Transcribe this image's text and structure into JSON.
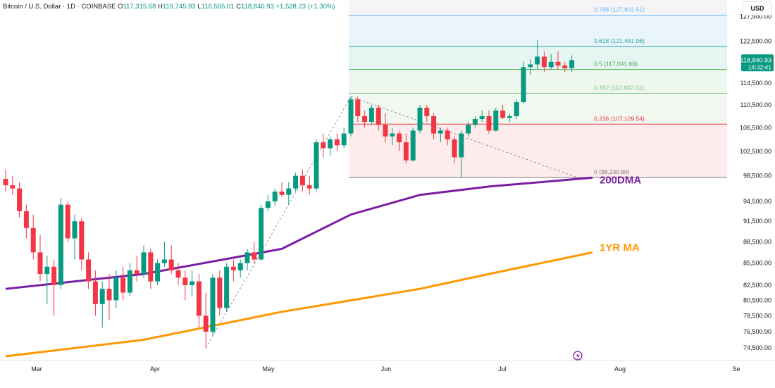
{
  "header": {
    "symbol": "Bitcoin / U.S. Dollar · 1D · COINBASE",
    "o_label": "O",
    "o_value": "117,315.68",
    "h_label": "H",
    "h_value": "119,745.93",
    "l_label": "L",
    "l_value": "116,565.01",
    "c_label": "C",
    "c_value": "118,840.93",
    "change": "+1,528.23 (+1.30%)"
  },
  "currency_button": "USD",
  "price_tag": {
    "price": "118,840.93",
    "countdown": "14:32:41"
  },
  "colors": {
    "up": "#089981",
    "down": "#f23645",
    "ma200": "#7b1fa2",
    "ma1yr": "#ff9800",
    "fib_786": "#64b5f6",
    "fib_618": "#26a69a",
    "fib_5": "#4caf50",
    "fib_382": "#81c784",
    "fib_236": "#f23645",
    "fib_0": "#787b86"
  },
  "chart_data": {
    "type": "candlestick",
    "x_axis": {
      "ticks": [
        "Mar",
        "Apr",
        "May",
        "Jun",
        "Jul",
        "Aug",
        "Se"
      ]
    },
    "y_axis": {
      "ticks": [
        "127,500.00",
        "122,500.00",
        "118,500.00",
        "114,500.00",
        "110,500.00",
        "106,500.00",
        "102,500.00",
        "98,500.00",
        "94,500.00",
        "91,500.00",
        "88,500.00",
        "85,500.00",
        "82,500.00",
        "80,500.00",
        "78,500.00",
        "76,500.00",
        "74,500.00"
      ],
      "scale": "log",
      "range": [
        73000,
        131000
      ]
    },
    "candles_ohlc_approx": [
      [
        98000,
        99500,
        96000,
        97000
      ],
      [
        97000,
        98500,
        95500,
        96500
      ],
      [
        96500,
        97500,
        92000,
        93000
      ],
      [
        93000,
        94000,
        89000,
        90500
      ],
      [
        90500,
        92500,
        86000,
        87000
      ],
      [
        87000,
        89500,
        83000,
        84000
      ],
      [
        84000,
        86500,
        80000,
        85000
      ],
      [
        85000,
        86000,
        78500,
        82500
      ],
      [
        82500,
        95000,
        82000,
        94000
      ],
      [
        94000,
        94500,
        88500,
        89000
      ],
      [
        89000,
        92500,
        86000,
        91500
      ],
      [
        91500,
        92000,
        84500,
        86000
      ],
      [
        86000,
        87000,
        82000,
        83000
      ],
      [
        83000,
        84500,
        78500,
        80000
      ],
      [
        80000,
        83000,
        77000,
        82000
      ],
      [
        82000,
        84000,
        78000,
        80500
      ],
      [
        80500,
        84500,
        79500,
        83500
      ],
      [
        83500,
        85000,
        80500,
        81500
      ],
      [
        81500,
        85500,
        81000,
        84500
      ],
      [
        84500,
        86500,
        83000,
        84000
      ],
      [
        84000,
        88000,
        83500,
        87000
      ],
      [
        87000,
        87500,
        82000,
        83000
      ],
      [
        83000,
        86000,
        82500,
        85500
      ],
      [
        85500,
        88500,
        85000,
        86000
      ],
      [
        86000,
        88000,
        84000,
        84500
      ],
      [
        84500,
        85500,
        82500,
        83500
      ],
      [
        83500,
        84500,
        80500,
        82500
      ],
      [
        82500,
        84500,
        81000,
        83000
      ],
      [
        83000,
        84000,
        77000,
        78500
      ],
      [
        78500,
        81500,
        74500,
        76500
      ],
      [
        76500,
        84000,
        76000,
        83500
      ],
      [
        83500,
        84500,
        78500,
        79500
      ],
      [
        79500,
        85500,
        79000,
        85000
      ],
      [
        85000,
        86000,
        83000,
        84500
      ],
      [
        84500,
        86000,
        83500,
        85500
      ],
      [
        85500,
        87500,
        84500,
        87000
      ],
      [
        87000,
        88500,
        85500,
        86000
      ],
      [
        86000,
        94000,
        85800,
        93500
      ],
      [
        93500,
        95500,
        93000,
        94500
      ],
      [
        94500,
        96500,
        93800,
        96000
      ],
      [
        96000,
        97500,
        95200,
        95500
      ],
      [
        95500,
        97500,
        94000,
        96500
      ],
      [
        96500,
        99000,
        96000,
        98500
      ],
      [
        98500,
        99500,
        96000,
        97000
      ],
      [
        97000,
        98500,
        95500,
        96500
      ],
      [
        96500,
        104500,
        96000,
        104000
      ],
      [
        104000,
        105500,
        101500,
        103000
      ],
      [
        103000,
        105000,
        101800,
        104500
      ],
      [
        104500,
        105500,
        102500,
        103500
      ],
      [
        103500,
        106500,
        103000,
        105500
      ],
      [
        105500,
        112000,
        105000,
        111500
      ],
      [
        111500,
        112000,
        107500,
        108500
      ],
      [
        108500,
        109500,
        106500,
        107500
      ],
      [
        107500,
        110500,
        107000,
        110000
      ],
      [
        110000,
        110500,
        106000,
        107000
      ],
      [
        107000,
        109000,
        104000,
        105000
      ],
      [
        105000,
        106500,
        103500,
        105500
      ],
      [
        105500,
        106000,
        102500,
        104000
      ],
      [
        104000,
        105500,
        100500,
        101000
      ],
      [
        101000,
        106500,
        100800,
        106000
      ],
      [
        106000,
        110500,
        105500,
        110000
      ],
      [
        110000,
        110500,
        107500,
        108500
      ],
      [
        108500,
        109000,
        104500,
        105500
      ],
      [
        105500,
        106500,
        104000,
        106000
      ],
      [
        106000,
        106500,
        103500,
        104500
      ],
      [
        104500,
        105000,
        100500,
        101500
      ],
      [
        101500,
        106000,
        98200,
        105500
      ],
      [
        105500,
        107500,
        105000,
        107000
      ],
      [
        107000,
        108500,
        106500,
        108000
      ],
      [
        108000,
        109500,
        107500,
        108500
      ],
      [
        108500,
        109500,
        105500,
        106000
      ],
      [
        106000,
        110000,
        105800,
        109500
      ],
      [
        109500,
        110500,
        108000,
        108200
      ],
      [
        108200,
        109000,
        107500,
        108500
      ],
      [
        108500,
        111500,
        108000,
        111000
      ],
      [
        111000,
        118500,
        110800,
        117500
      ],
      [
        117500,
        119000,
        116000,
        118000
      ],
      [
        118000,
        122800,
        117000,
        119500
      ],
      [
        119500,
        120500,
        116500,
        117500
      ],
      [
        117500,
        120000,
        117000,
        118500
      ],
      [
        118500,
        120500,
        117000,
        117800
      ],
      [
        117800,
        118500,
        116500,
        117300
      ],
      [
        117300,
        119750,
        116565,
        118840
      ]
    ],
    "moving_averages": [
      {
        "name": "200DMA",
        "points_approx": [
          [
            0,
            82000
          ],
          [
            20,
            84000
          ],
          [
            40,
            87500
          ],
          [
            50,
            92500
          ],
          [
            60,
            95500
          ],
          [
            70,
            96800
          ],
          [
            85,
            98200
          ]
        ]
      },
      {
        "name": "1YR MA",
        "points_approx": [
          [
            0,
            73500
          ],
          [
            20,
            75500
          ],
          [
            40,
            79000
          ],
          [
            60,
            82000
          ],
          [
            70,
            84000
          ],
          [
            85,
            87000
          ]
        ]
      }
    ],
    "fibonacci": {
      "levels": [
        {
          "ratio": "0.786",
          "value": "127,801.51",
          "price": 127801.51
        },
        {
          "ratio": "0.618",
          "value": "121,481.06",
          "price": 121481.06
        },
        {
          "ratio": "0.5",
          "value": "117,041.69",
          "price": 117041.69
        },
        {
          "ratio": "0.382",
          "value": "112,602.32",
          "price": 112602.32
        },
        {
          "ratio": "0.236",
          "value": "107,109.54",
          "price": 107109.54
        },
        {
          "ratio": "0",
          "value": "98,230.80",
          "price": 98230.8
        }
      ],
      "top_price": 131000
    }
  }
}
